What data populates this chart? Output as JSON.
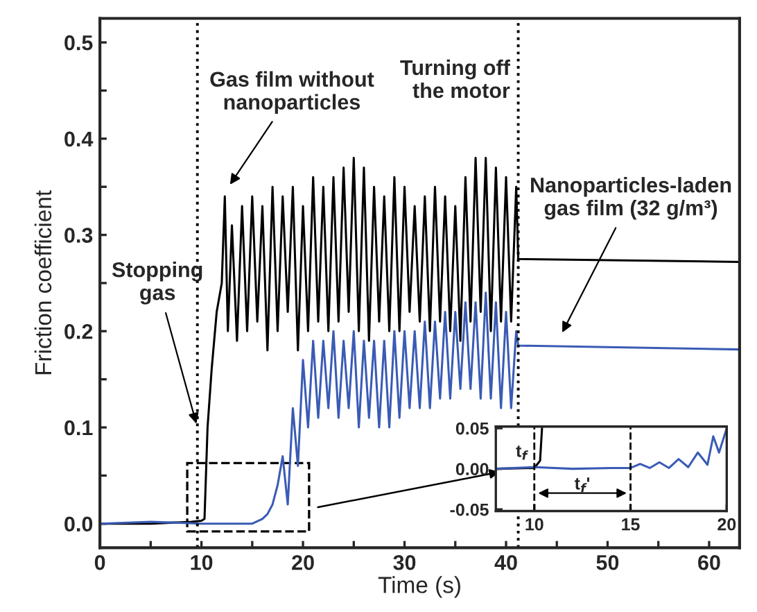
{
  "chart_data": [
    {
      "type": "line",
      "xlabel": "Time (s)",
      "ylabel": "Friction coefficient",
      "xlim": [
        0,
        63
      ],
      "ylim": [
        -0.025,
        0.525
      ],
      "xticks": [
        0,
        {
          "value": 5,
          "label": null
        },
        10,
        {
          "value": 15,
          "label": null
        },
        20,
        {
          "value": 25,
          "label": null
        },
        30,
        {
          "value": 35,
          "label": null
        },
        40,
        {
          "value": 45,
          "label": null
        },
        50,
        {
          "value": 55,
          "label": null
        },
        60
      ],
      "yticks": [
        {
          "value": 0,
          "label": "0.0"
        },
        {
          "value": 0.05,
          "label": null
        },
        0.1,
        {
          "value": 0.15,
          "label": null
        },
        0.2,
        {
          "value": 0.25,
          "label": null
        },
        0.3,
        {
          "value": 0.35,
          "label": null
        },
        0.4,
        {
          "value": 0.45,
          "label": null
        },
        0.5
      ],
      "series": [
        {
          "color": "#000000",
          "x": [
            0,
            5,
            9,
            10,
            10.3,
            10.6,
            11,
            11.5,
            12,
            12.3,
            12.6,
            13,
            13.5,
            14,
            14.5,
            15,
            15.5,
            16,
            16.5,
            17,
            17.5,
            18,
            18.5,
            19,
            19.5,
            20,
            20.5,
            21,
            21.5,
            22,
            22.5,
            23,
            23.5,
            24,
            24.5,
            25,
            25.5,
            26,
            26.5,
            27,
            27.5,
            28,
            28.5,
            29,
            29.5,
            30,
            30.5,
            31,
            31.5,
            32,
            32.5,
            33,
            33.5,
            34,
            34.5,
            35,
            35.5,
            36,
            36.5,
            37,
            37.5,
            38,
            38.5,
            39,
            39.5,
            40,
            40.5,
            41,
            41.2,
            63
          ],
          "values": [
            0,
            0,
            0.002,
            0.003,
            0.005,
            0.1,
            0.16,
            0.22,
            0.25,
            0.34,
            0.2,
            0.31,
            0.19,
            0.33,
            0.2,
            0.34,
            0.21,
            0.33,
            0.18,
            0.35,
            0.2,
            0.34,
            0.22,
            0.35,
            0.18,
            0.33,
            0.2,
            0.36,
            0.21,
            0.35,
            0.2,
            0.36,
            0.21,
            0.37,
            0.22,
            0.38,
            0.2,
            0.37,
            0.19,
            0.35,
            0.21,
            0.34,
            0.2,
            0.36,
            0.2,
            0.35,
            0.22,
            0.33,
            0.21,
            0.34,
            0.2,
            0.35,
            0.21,
            0.34,
            0.2,
            0.33,
            0.19,
            0.36,
            0.21,
            0.38,
            0.22,
            0.38,
            0.2,
            0.37,
            0.21,
            0.36,
            0.21,
            0.35,
            0.275,
            0.272
          ]
        },
        {
          "color": "#3a5bb5",
          "x": [
            0,
            5,
            10,
            15,
            16,
            16.5,
            17,
            17.5,
            18,
            18.5,
            19,
            19.5,
            20,
            20.5,
            21,
            21.5,
            22,
            22.5,
            23,
            23.5,
            24,
            24.5,
            25,
            25.5,
            26,
            26.5,
            27,
            27.5,
            28,
            28.5,
            29,
            29.5,
            30,
            30.5,
            31,
            31.5,
            32,
            32.5,
            33,
            33.5,
            34,
            34.5,
            35,
            35.5,
            36,
            36.5,
            37,
            37.5,
            38,
            38.5,
            39,
            39.5,
            40,
            40.5,
            41,
            41.2,
            63
          ],
          "values": [
            0,
            0.002,
            0,
            0,
            0.005,
            0.01,
            0.02,
            0.04,
            0.07,
            0.02,
            0.12,
            0.06,
            0.17,
            0.1,
            0.19,
            0.11,
            0.19,
            0.12,
            0.2,
            0.11,
            0.19,
            0.12,
            0.2,
            0.1,
            0.19,
            0.11,
            0.19,
            0.1,
            0.19,
            0.1,
            0.2,
            0.11,
            0.2,
            0.12,
            0.2,
            0.12,
            0.21,
            0.12,
            0.21,
            0.13,
            0.22,
            0.13,
            0.22,
            0.14,
            0.23,
            0.14,
            0.23,
            0.13,
            0.24,
            0.13,
            0.23,
            0.12,
            0.22,
            0.12,
            0.2,
            0.185,
            0.181
          ]
        }
      ],
      "ref_lines": [
        {
          "axis": "x",
          "value": 41.2,
          "label": "Turning off\nthe motor",
          "line_style": "dotted"
        },
        {
          "axis": "x",
          "value": 9.6,
          "line_style": "dotted"
        }
      ],
      "annotations": [
        "Gas film without\nnanoparticles",
        "Nanoparticles-laden\ngas film (32 g/m³)",
        {
          "text": "Stopping\ngas",
          "x": 9.6,
          "y": 0.1
        }
      ],
      "marker": "none",
      "line_style": "solid"
    },
    {
      "type": "line",
      "xlim": [
        8,
        20
      ],
      "ylim": [
        -0.052,
        0.052
      ],
      "xticks": [
        10,
        15,
        20
      ],
      "yticks": [
        {
          "value": 0.05,
          "label": "0.05"
        },
        {
          "value": 0,
          "label": "0.00"
        },
        {
          "value": -0.05,
          "label": "-0.05"
        }
      ],
      "series": [
        {
          "color": "#000000",
          "x": [
            8,
            10,
            10.3,
            10.4
          ],
          "values": [
            0,
            0.001,
            0.01,
            0.05
          ]
        },
        {
          "color": "#3a5bb5",
          "x": [
            8,
            10,
            12,
            14,
            15,
            15.5,
            16,
            16.5,
            17,
            17.5,
            18,
            18.5,
            19,
            19.3,
            19.6,
            20
          ],
          "values": [
            0,
            0.002,
            0,
            0.001,
            0.001,
            0.006,
            0.001,
            0.008,
            0.001,
            0.012,
            0.002,
            0.02,
            0.005,
            0.04,
            0.02,
            0.05
          ]
        }
      ],
      "ref_lines": [
        {
          "axis": "x",
          "value": 10,
          "label": "t$_{f}$",
          "line_style": "dashed"
        },
        {
          "axis": "x",
          "value": 15,
          "line_style": "dashed"
        }
      ],
      "annotations": [
        "t$_{f}$'"
      ],
      "marker": "none",
      "line_style": "solid"
    }
  ]
}
